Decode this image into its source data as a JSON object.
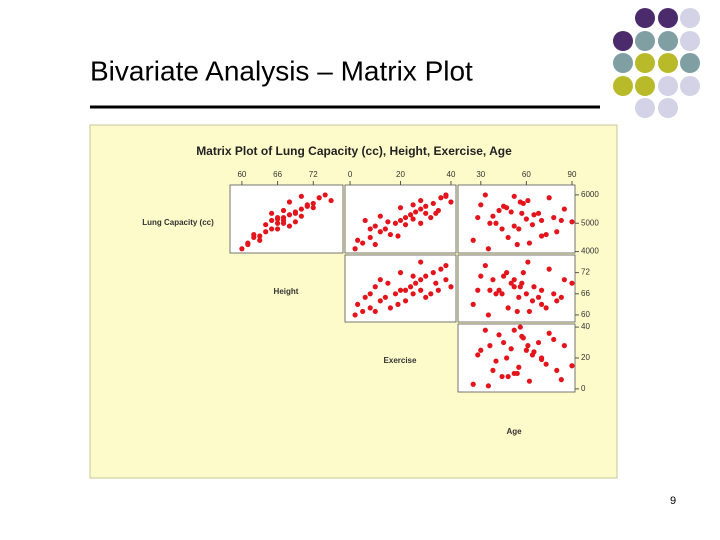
{
  "slide_title": "Bivariate Analysis – Matrix Plot",
  "page_number": "9",
  "chart_data": {
    "type": "scatter-matrix",
    "title": "Matrix Plot of Lung Capacity (cc), Height, Exercise, Age",
    "color": "#e3141b",
    "variables": [
      {
        "name": "Lung Capacity (cc)",
        "lim": [
          3950,
          6350
        ],
        "ticks": [
          4000,
          5000,
          6000
        ],
        "values": [
          4100,
          4300,
          4500,
          4700,
          4800,
          5000,
          5100,
          5200,
          5300,
          5400,
          5500,
          5600,
          5700,
          5900,
          6000,
          5150,
          4900,
          5350,
          4400,
          5050,
          5450,
          4600,
          5250,
          5750,
          4950,
          5550,
          5200,
          4250,
          5650,
          5100,
          5800,
          4800,
          5350,
          4550,
          5950,
          5000
        ]
      },
      {
        "name": "Height",
        "lim": [
          58,
          77
        ],
        "ticks": [
          60,
          66,
          72
        ],
        "values": [
          60,
          61,
          62,
          64,
          65,
          66,
          67,
          67,
          68,
          69,
          70,
          71,
          72,
          73,
          74,
          66,
          68,
          65,
          63,
          69,
          67,
          62,
          70,
          68,
          64,
          72,
          66,
          61,
          71,
          65,
          75,
          66,
          69,
          63,
          70,
          67
        ]
      },
      {
        "name": "Exercise",
        "lim": [
          -2,
          42
        ],
        "ticks": [
          0,
          20,
          40
        ],
        "values": [
          2,
          5,
          8,
          12,
          14,
          18,
          20,
          22,
          24,
          26,
          28,
          30,
          33,
          36,
          38,
          25,
          10,
          30,
          3,
          15,
          35,
          16,
          12,
          40,
          22,
          20,
          32,
          10,
          25,
          6,
          28,
          8,
          34,
          19,
          38,
          28
        ]
      },
      {
        "name": "Age",
        "lim": [
          15,
          92
        ],
        "ticks": [
          30,
          60,
          90
        ],
        "values": [
          35,
          62,
          48,
          80,
          55,
          40,
          70,
          28,
          65,
          50,
          85,
          45,
          58,
          75,
          33,
          60,
          52,
          68,
          25,
          90,
          42,
          73,
          38,
          56,
          64,
          47,
          78,
          54,
          30,
          83,
          61,
          44,
          57,
          70,
          52,
          36
        ]
      }
    ]
  }
}
